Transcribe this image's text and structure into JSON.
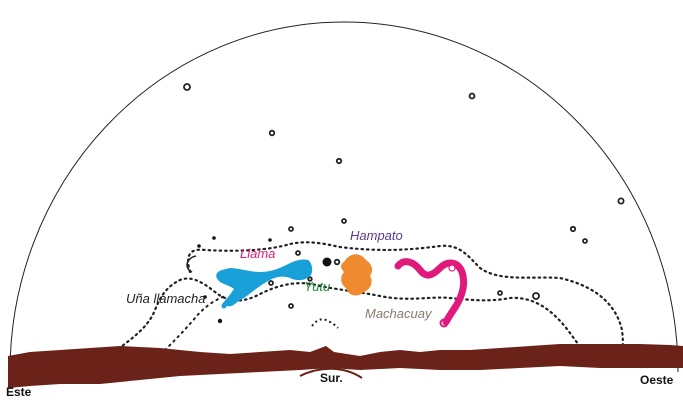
{
  "labels": {
    "llama": "Llama",
    "hampato": "Hampato",
    "yutu": "Yutu",
    "una_llamacha": "Uña llamacha",
    "machacuay": "Machacuay"
  },
  "directions": {
    "east": "Este",
    "south": "Sur.",
    "west": "Oeste"
  },
  "colors": {
    "llama_fill": "#1aa0d8",
    "llama_label": "#e0197d",
    "hampato_fill": "#ef8a2e",
    "hampato_label": "#5a3a8c",
    "yutu_label": "#1b8a3a",
    "machacuay_fill": "#e0197d",
    "machacuay_label": "#8a7a6a",
    "horizon": "#6b2218",
    "outline": "#222222"
  }
}
